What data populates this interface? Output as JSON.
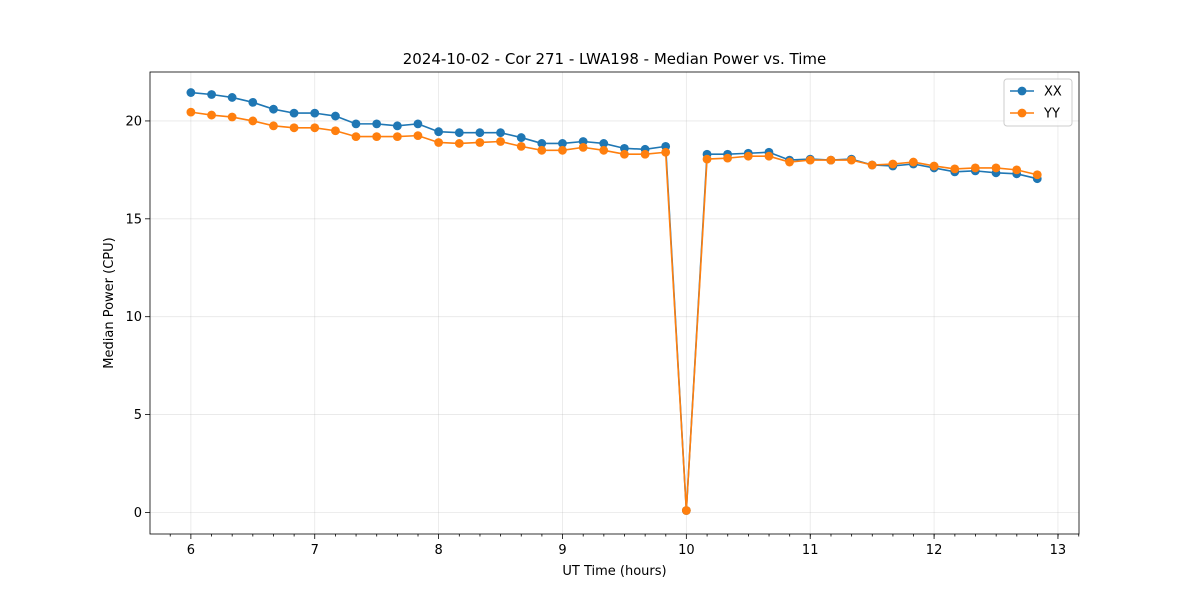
{
  "chart_data": {
    "type": "line",
    "title": "2024-10-02 - Cor 271 - LWA198 - Median Power vs. Time",
    "xlabel": "UT Time (hours)",
    "ylabel": "Median Power (CPU)",
    "xlim": [
      5.67,
      13.17
    ],
    "ylim": [
      -1.1,
      22.5
    ],
    "xticks": [
      6,
      7,
      8,
      9,
      10,
      11,
      12,
      13
    ],
    "xtick_labels": [
      "6",
      "7",
      "8",
      "9",
      "10",
      "11",
      "12",
      "13"
    ],
    "x_minor_step": 0.1667,
    "yticks": [
      0,
      5,
      10,
      15,
      20
    ],
    "ytick_labels": [
      "0",
      "5",
      "10",
      "15",
      "20"
    ],
    "grid": true,
    "legend_position": "top-right",
    "x": [
      6.0,
      6.167,
      6.333,
      6.5,
      6.667,
      6.833,
      7.0,
      7.167,
      7.333,
      7.5,
      7.667,
      7.833,
      8.0,
      8.167,
      8.333,
      8.5,
      8.667,
      8.833,
      9.0,
      9.167,
      9.333,
      9.5,
      9.667,
      9.833,
      10.0,
      10.167,
      10.333,
      10.5,
      10.667,
      10.833,
      11.0,
      11.167,
      11.333,
      11.5,
      11.667,
      11.833,
      12.0,
      12.167,
      12.333,
      12.5,
      12.667,
      12.833
    ],
    "series": [
      {
        "name": "XX",
        "color": "#1f77b4",
        "values": [
          21.45,
          21.35,
          21.2,
          20.95,
          20.6,
          20.4,
          20.4,
          20.25,
          19.85,
          19.85,
          19.75,
          19.85,
          19.45,
          19.4,
          19.4,
          19.4,
          19.15,
          18.85,
          18.85,
          18.95,
          18.85,
          18.6,
          18.55,
          18.7,
          0.1,
          18.3,
          18.3,
          18.35,
          18.4,
          18.0,
          18.05,
          18.0,
          18.05,
          17.75,
          17.7,
          17.8,
          17.6,
          17.4,
          17.45,
          17.35,
          17.3,
          17.05
        ]
      },
      {
        "name": "YY",
        "color": "#ff7f0e",
        "values": [
          20.45,
          20.3,
          20.2,
          20.0,
          19.75,
          19.65,
          19.65,
          19.5,
          19.2,
          19.2,
          19.2,
          19.25,
          18.9,
          18.85,
          18.9,
          18.95,
          18.7,
          18.5,
          18.5,
          18.65,
          18.5,
          18.3,
          18.3,
          18.4,
          0.1,
          18.05,
          18.1,
          18.2,
          18.2,
          17.9,
          18.0,
          18.0,
          18.0,
          17.75,
          17.8,
          17.9,
          17.7,
          17.55,
          17.6,
          17.6,
          17.5,
          17.25
        ]
      }
    ]
  }
}
